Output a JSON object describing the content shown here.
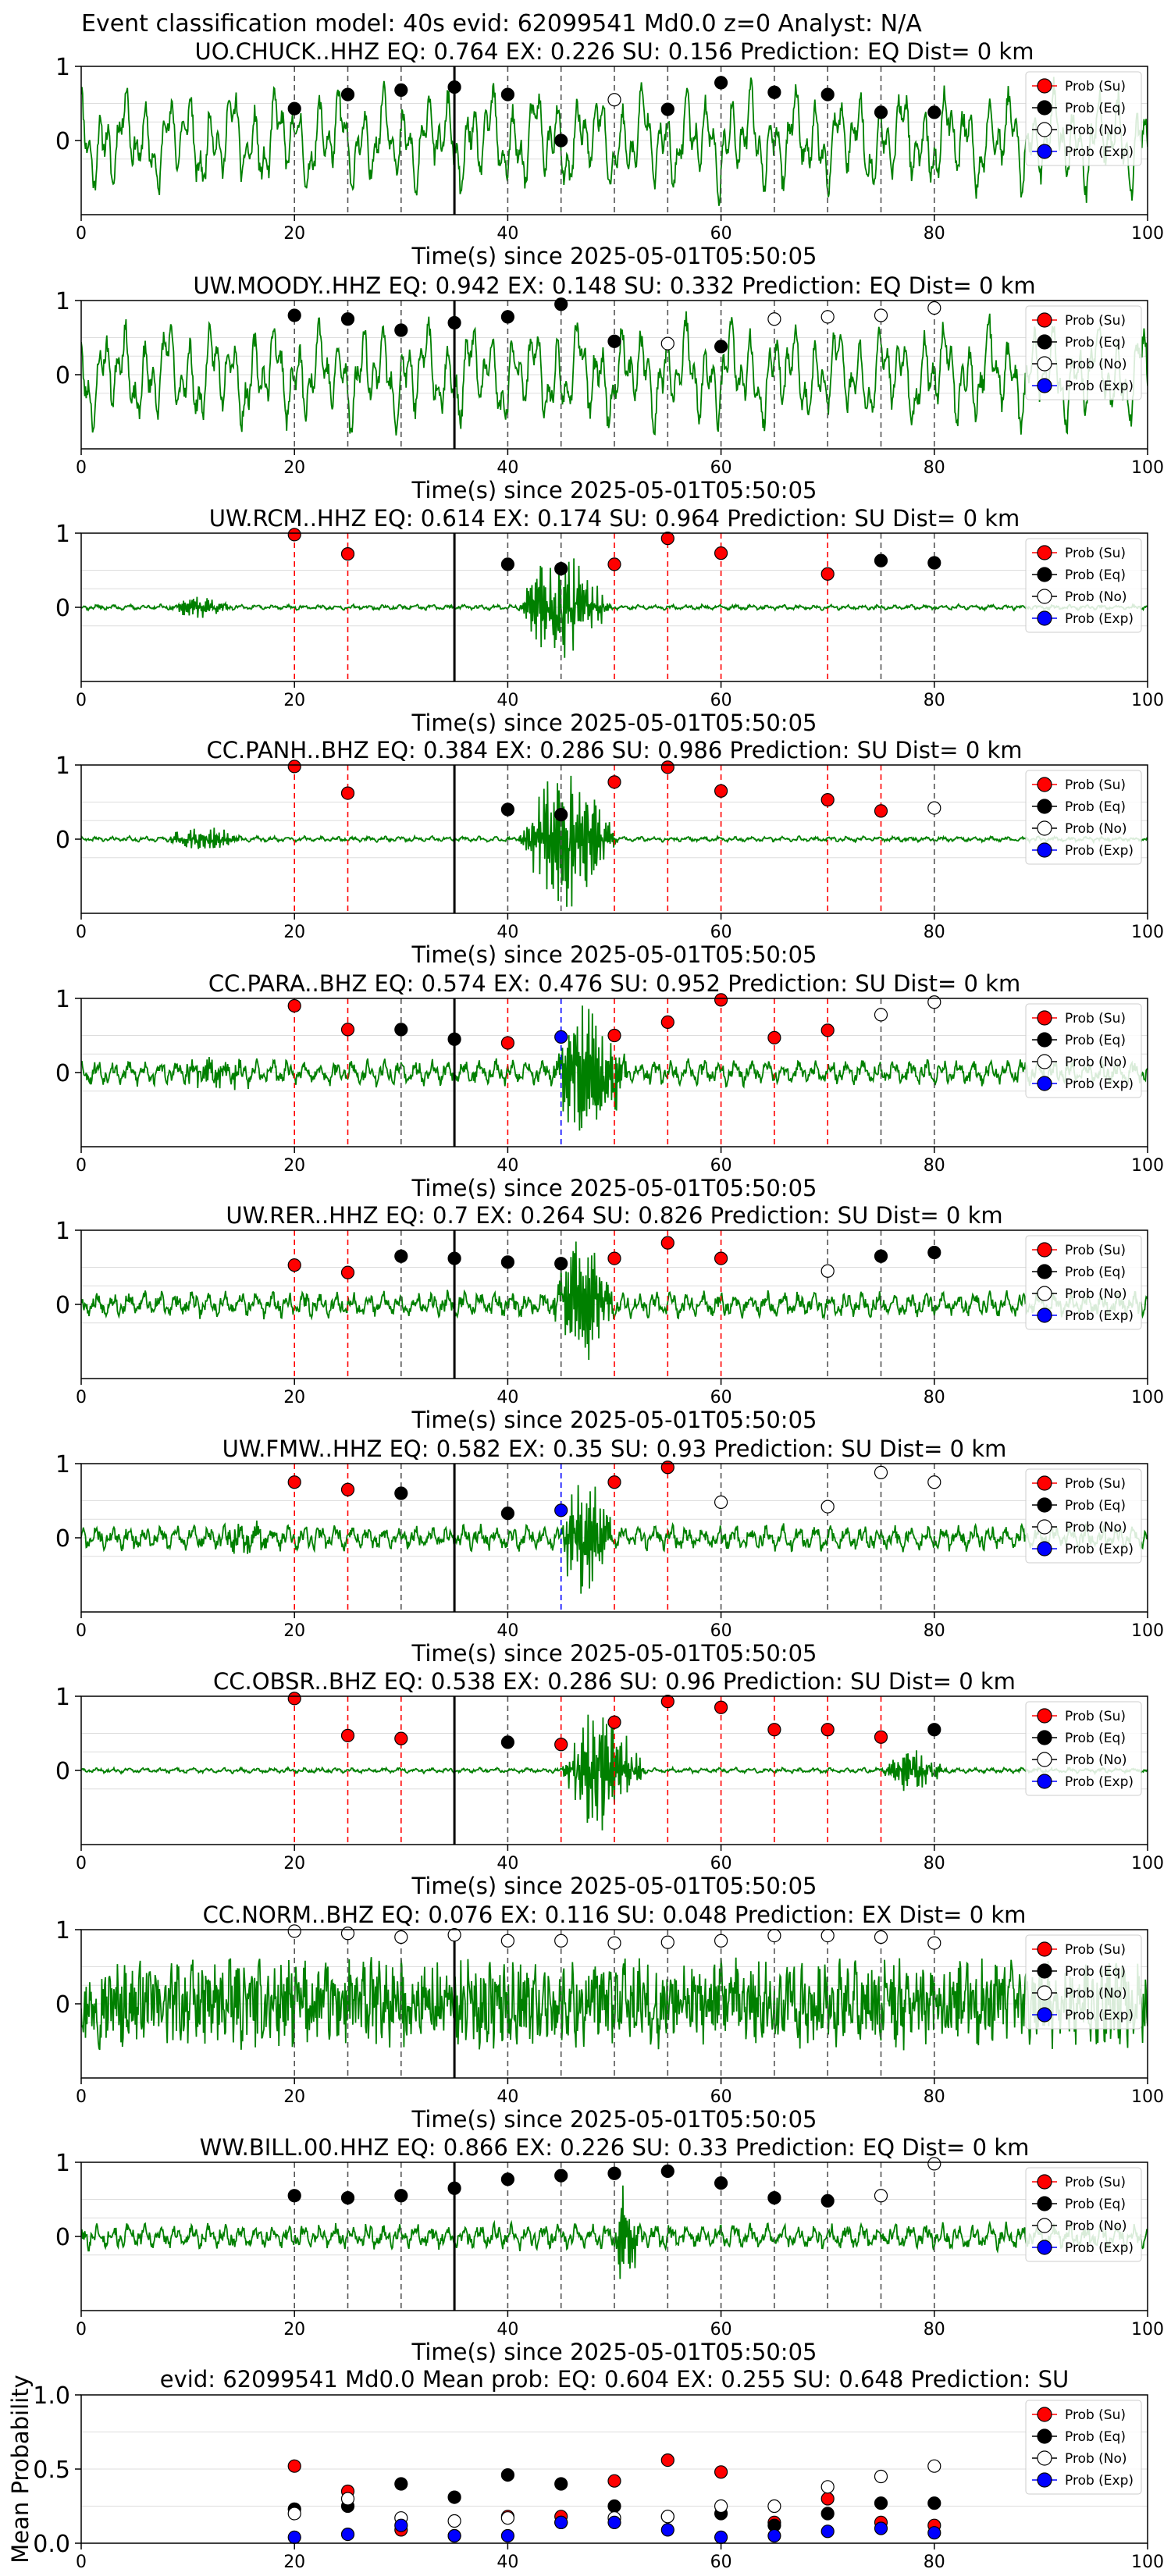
{
  "suptitle": "Event classification model: 40s evid: 62099541 Md0.0 z=0 Analyst: N/A",
  "legend_labels": [
    "Prob (Su)",
    "Prob (Eq)",
    "Prob (No)",
    "Prob (Exp)"
  ],
  "colors": {
    "su": "#ff0000",
    "eq": "#000000",
    "no": "#ffffff",
    "exp": "#0000ff",
    "waveform": "#008000",
    "origin_line": "#000000",
    "grid": "#dddddd"
  },
  "chart_data": [
    {
      "type": "line",
      "title": "UO.CHUCK..HHZ   EQ: 0.764  EX: 0.226  SU: 0.156   Prediction: EQ    Dist= 0 km",
      "xlabel": "Time(s) since 2025-05-01T05:50:05",
      "xlim": [
        0,
        100
      ],
      "ylim": [
        -1,
        1
      ],
      "xticks": [
        0,
        20,
        40,
        60,
        80,
        100
      ],
      "yticks": [
        1,
        0
      ],
      "origin_time": 35,
      "waveform": {
        "style": "strong",
        "seed": 11,
        "events": []
      },
      "windows": [
        {
          "t": 20,
          "class": "eq",
          "p": 0.43
        },
        {
          "t": 25,
          "class": "eq",
          "p": 0.62
        },
        {
          "t": 30,
          "class": "eq",
          "p": 0.68
        },
        {
          "t": 35,
          "class": "eq",
          "p": 0.72
        },
        {
          "t": 40,
          "class": "eq",
          "p": 0.62
        },
        {
          "t": 45,
          "class": "eq",
          "p": 0.0
        },
        {
          "t": 50,
          "class": "no",
          "p": 0.55
        },
        {
          "t": 55,
          "class": "eq",
          "p": 0.42
        },
        {
          "t": 60,
          "class": "eq",
          "p": 0.78
        },
        {
          "t": 65,
          "class": "eq",
          "p": 0.65
        },
        {
          "t": 70,
          "class": "eq",
          "p": 0.62
        },
        {
          "t": 75,
          "class": "eq",
          "p": 0.38
        },
        {
          "t": 80,
          "class": "eq",
          "p": 0.38
        }
      ]
    },
    {
      "type": "line",
      "title": "UW.MOODY..HHZ   EQ: 0.942  EX: 0.148  SU: 0.332   Prediction: EQ    Dist= 0 km",
      "xlabel": "Time(s) since 2025-05-01T05:50:05",
      "xlim": [
        0,
        100
      ],
      "ylim": [
        -1,
        1
      ],
      "xticks": [
        0,
        20,
        40,
        60,
        80,
        100
      ],
      "yticks": [
        1,
        0
      ],
      "origin_time": 35,
      "waveform": {
        "style": "strong",
        "seed": 23,
        "events": []
      },
      "windows": [
        {
          "t": 20,
          "class": "eq",
          "p": 0.8
        },
        {
          "t": 25,
          "class": "eq",
          "p": 0.75
        },
        {
          "t": 30,
          "class": "eq",
          "p": 0.6
        },
        {
          "t": 35,
          "class": "eq",
          "p": 0.7
        },
        {
          "t": 40,
          "class": "eq",
          "p": 0.78
        },
        {
          "t": 45,
          "class": "eq",
          "p": 0.95
        },
        {
          "t": 50,
          "class": "eq",
          "p": 0.45
        },
        {
          "t": 55,
          "class": "no",
          "p": 0.42
        },
        {
          "t": 60,
          "class": "eq",
          "p": 0.38
        },
        {
          "t": 65,
          "class": "no",
          "p": 0.75
        },
        {
          "t": 70,
          "class": "no",
          "p": 0.78
        },
        {
          "t": 75,
          "class": "no",
          "p": 0.8
        },
        {
          "t": 80,
          "class": "no",
          "p": 0.9
        }
      ]
    },
    {
      "type": "line",
      "title": "UW.RCM..HHZ   EQ: 0.614  EX: 0.174  SU: 0.964   Prediction: SU    Dist= 0 km",
      "xlabel": "Time(s) since 2025-05-01T05:50:05",
      "xlim": [
        0,
        100
      ],
      "ylim": [
        -1,
        1
      ],
      "xticks": [
        0,
        20,
        40,
        60,
        80,
        100
      ],
      "yticks": [
        1,
        0
      ],
      "origin_time": 35,
      "waveform": {
        "style": "quiet",
        "seed": 37,
        "events": [
          {
            "t0": 8,
            "t1": 18,
            "amp": 0.14
          },
          {
            "t0": 41,
            "t1": 55,
            "amp": 0.75
          }
        ]
      },
      "windows": [
        {
          "t": 20,
          "class": "su",
          "p": 0.98
        },
        {
          "t": 25,
          "class": "su",
          "p": 0.72
        },
        {
          "t": 40,
          "class": "eq",
          "p": 0.58
        },
        {
          "t": 45,
          "class": "eq",
          "p": 0.52
        },
        {
          "t": 50,
          "class": "su",
          "p": 0.58
        },
        {
          "t": 55,
          "class": "su",
          "p": 0.93
        },
        {
          "t": 60,
          "class": "su",
          "p": 0.73
        },
        {
          "t": 70,
          "class": "su",
          "p": 0.45
        },
        {
          "t": 75,
          "class": "eq",
          "p": 0.63
        },
        {
          "t": 80,
          "class": "eq",
          "p": 0.6
        }
      ]
    },
    {
      "type": "line",
      "title": "CC.PANH..BHZ   EQ: 0.384  EX: 0.286  SU: 0.986   Prediction: SU    Dist= 0 km",
      "xlabel": "Time(s) since 2025-05-01T05:50:05",
      "xlim": [
        0,
        100
      ],
      "ylim": [
        -1,
        1
      ],
      "xticks": [
        0,
        20,
        40,
        60,
        80,
        100
      ],
      "yticks": [
        1,
        0
      ],
      "origin_time": 35,
      "waveform": {
        "style": "quiet",
        "seed": 41,
        "events": [
          {
            "t0": 8,
            "t1": 20,
            "amp": 0.18
          },
          {
            "t0": 41,
            "t1": 56,
            "amp": 0.95
          }
        ]
      },
      "windows": [
        {
          "t": 20,
          "class": "su",
          "p": 0.98
        },
        {
          "t": 25,
          "class": "su",
          "p": 0.62
        },
        {
          "t": 40,
          "class": "eq",
          "p": 0.4
        },
        {
          "t": 45,
          "class": "eq",
          "p": 0.33
        },
        {
          "t": 50,
          "class": "su",
          "p": 0.77
        },
        {
          "t": 55,
          "class": "su",
          "p": 0.97
        },
        {
          "t": 60,
          "class": "su",
          "p": 0.65
        },
        {
          "t": 70,
          "class": "su",
          "p": 0.53
        },
        {
          "t": 75,
          "class": "su",
          "p": 0.38
        },
        {
          "t": 80,
          "class": "no",
          "p": 0.42
        }
      ]
    },
    {
      "type": "line",
      "title": "CC.PARA..BHZ   EQ: 0.574  EX: 0.476  SU: 0.952   Prediction: SU    Dist= 0 km",
      "xlabel": "Time(s) since 2025-05-01T05:50:05",
      "xlim": [
        0,
        100
      ],
      "ylim": [
        -1,
        1
      ],
      "xticks": [
        0,
        20,
        40,
        60,
        80,
        100
      ],
      "yticks": [
        1,
        0
      ],
      "origin_time": 35,
      "waveform": {
        "style": "medium",
        "seed": 53,
        "events": [
          {
            "t0": 9,
            "t1": 22,
            "amp": 0.2
          },
          {
            "t0": 44,
            "t1": 56,
            "amp": 1.0
          }
        ]
      },
      "windows": [
        {
          "t": 20,
          "class": "su",
          "p": 0.9
        },
        {
          "t": 25,
          "class": "su",
          "p": 0.58
        },
        {
          "t": 30,
          "class": "eq",
          "p": 0.58
        },
        {
          "t": 35,
          "class": "eq",
          "p": 0.45
        },
        {
          "t": 40,
          "class": "su",
          "p": 0.4
        },
        {
          "t": 45,
          "class": "exp",
          "p": 0.48
        },
        {
          "t": 50,
          "class": "su",
          "p": 0.5
        },
        {
          "t": 55,
          "class": "su",
          "p": 0.68
        },
        {
          "t": 60,
          "class": "su",
          "p": 0.98
        },
        {
          "t": 65,
          "class": "su",
          "p": 0.47
        },
        {
          "t": 70,
          "class": "su",
          "p": 0.57
        },
        {
          "t": 75,
          "class": "no",
          "p": 0.78
        },
        {
          "t": 80,
          "class": "no",
          "p": 0.95
        }
      ]
    },
    {
      "type": "line",
      "title": "UW.RER..HHZ   EQ: 0.7  EX: 0.264  SU: 0.826   Prediction: SU    Dist= 0 km",
      "xlabel": "Time(s) since 2025-05-01T05:50:05",
      "xlim": [
        0,
        100
      ],
      "ylim": [
        -1,
        1
      ],
      "xticks": [
        0,
        20,
        40,
        60,
        80,
        100
      ],
      "yticks": [
        1,
        0
      ],
      "origin_time": 35,
      "waveform": {
        "style": "medium",
        "seed": 67,
        "events": [
          {
            "t0": 44,
            "t1": 54,
            "amp": 0.95
          }
        ]
      },
      "windows": [
        {
          "t": 20,
          "class": "su",
          "p": 0.53
        },
        {
          "t": 25,
          "class": "su",
          "p": 0.43
        },
        {
          "t": 30,
          "class": "eq",
          "p": 0.65
        },
        {
          "t": 35,
          "class": "eq",
          "p": 0.62
        },
        {
          "t": 40,
          "class": "eq",
          "p": 0.57
        },
        {
          "t": 45,
          "class": "eq",
          "p": 0.55
        },
        {
          "t": 50,
          "class": "su",
          "p": 0.62
        },
        {
          "t": 55,
          "class": "su",
          "p": 0.83
        },
        {
          "t": 60,
          "class": "su",
          "p": 0.62
        },
        {
          "t": 70,
          "class": "no",
          "p": 0.45
        },
        {
          "t": 75,
          "class": "eq",
          "p": 0.65
        },
        {
          "t": 80,
          "class": "eq",
          "p": 0.7
        }
      ]
    },
    {
      "type": "line",
      "title": "UW.FMW..HHZ   EQ: 0.582  EX: 0.35  SU: 0.93   Prediction: SU    Dist= 0 km",
      "xlabel": "Time(s) since 2025-05-01T05:50:05",
      "xlim": [
        0,
        100
      ],
      "ylim": [
        -1,
        1
      ],
      "xticks": [
        0,
        20,
        40,
        60,
        80,
        100
      ],
      "yticks": [
        1,
        0
      ],
      "origin_time": 35,
      "waveform": {
        "style": "medium",
        "seed": 71,
        "events": [
          {
            "t0": 13,
            "t1": 22,
            "amp": 0.18
          },
          {
            "t0": 45,
            "t1": 53,
            "amp": 1.0
          }
        ]
      },
      "windows": [
        {
          "t": 20,
          "class": "su",
          "p": 0.75
        },
        {
          "t": 25,
          "class": "su",
          "p": 0.65
        },
        {
          "t": 30,
          "class": "eq",
          "p": 0.6
        },
        {
          "t": 40,
          "class": "eq",
          "p": 0.33
        },
        {
          "t": 45,
          "class": "exp",
          "p": 0.37
        },
        {
          "t": 50,
          "class": "su",
          "p": 0.75
        },
        {
          "t": 55,
          "class": "su",
          "p": 0.95
        },
        {
          "t": 60,
          "class": "no",
          "p": 0.48
        },
        {
          "t": 70,
          "class": "no",
          "p": 0.42
        },
        {
          "t": 75,
          "class": "no",
          "p": 0.88
        },
        {
          "t": 80,
          "class": "no",
          "p": 0.75
        }
      ]
    },
    {
      "type": "line",
      "title": "CC.OBSR..BHZ   EQ: 0.538  EX: 0.286  SU: 0.96   Prediction: SU    Dist= 0 km",
      "xlabel": "Time(s) since 2025-05-01T05:50:05",
      "xlim": [
        0,
        100
      ],
      "ylim": [
        -1,
        1
      ],
      "xticks": [
        0,
        20,
        40,
        60,
        80,
        100
      ],
      "yticks": [
        1,
        0
      ],
      "origin_time": 35,
      "waveform": {
        "style": "quiet",
        "seed": 83,
        "events": [
          {
            "t0": 45,
            "t1": 58,
            "amp": 0.85
          },
          {
            "t0": 75,
            "t1": 85,
            "amp": 0.3
          }
        ]
      },
      "windows": [
        {
          "t": 20,
          "class": "su",
          "p": 0.97
        },
        {
          "t": 25,
          "class": "su",
          "p": 0.47
        },
        {
          "t": 30,
          "class": "su",
          "p": 0.43
        },
        {
          "t": 40,
          "class": "eq",
          "p": 0.38
        },
        {
          "t": 45,
          "class": "su",
          "p": 0.35
        },
        {
          "t": 50,
          "class": "su",
          "p": 0.65
        },
        {
          "t": 55,
          "class": "su",
          "p": 0.93
        },
        {
          "t": 60,
          "class": "su",
          "p": 0.85
        },
        {
          "t": 65,
          "class": "su",
          "p": 0.55
        },
        {
          "t": 70,
          "class": "su",
          "p": 0.55
        },
        {
          "t": 75,
          "class": "su",
          "p": 0.45
        },
        {
          "t": 80,
          "class": "eq",
          "p": 0.55
        }
      ]
    },
    {
      "type": "line",
      "title": "CC.NORM..BHZ   EQ: 0.076  EX: 0.116  SU: 0.048   Prediction: EX    Dist= 0 km",
      "xlabel": "Time(s) since 2025-05-01T05:50:05",
      "xlim": [
        0,
        100
      ],
      "ylim": [
        -1,
        1
      ],
      "xticks": [
        0,
        20,
        40,
        60,
        80,
        100
      ],
      "yticks": [
        1,
        0
      ],
      "origin_time": 35,
      "waveform": {
        "style": "noise",
        "seed": 97,
        "events": []
      },
      "windows": [
        {
          "t": 20,
          "class": "no",
          "p": 0.98
        },
        {
          "t": 25,
          "class": "no",
          "p": 0.95
        },
        {
          "t": 30,
          "class": "no",
          "p": 0.9
        },
        {
          "t": 35,
          "class": "no",
          "p": 0.93
        },
        {
          "t": 40,
          "class": "no",
          "p": 0.85
        },
        {
          "t": 45,
          "class": "no",
          "p": 0.85
        },
        {
          "t": 50,
          "class": "no",
          "p": 0.82
        },
        {
          "t": 55,
          "class": "no",
          "p": 0.83
        },
        {
          "t": 60,
          "class": "no",
          "p": 0.85
        },
        {
          "t": 65,
          "class": "no",
          "p": 0.92
        },
        {
          "t": 70,
          "class": "no",
          "p": 0.92
        },
        {
          "t": 75,
          "class": "no",
          "p": 0.9
        },
        {
          "t": 80,
          "class": "no",
          "p": 0.82
        }
      ]
    },
    {
      "type": "line",
      "title": "WW.BILL.00.HHZ   EQ: 0.866  EX: 0.226  SU: 0.33   Prediction: EQ    Dist= 0 km",
      "xlabel": "Time(s) since 2025-05-01T05:50:05",
      "xlim": [
        0,
        100
      ],
      "ylim": [
        -1,
        1
      ],
      "xticks": [
        0,
        20,
        40,
        60,
        80,
        100
      ],
      "yticks": [
        1,
        0
      ],
      "origin_time": 35,
      "waveform": {
        "style": "medium",
        "seed": 101,
        "events": [
          {
            "t0": 50,
            "t1": 54,
            "amp": 0.95
          }
        ]
      },
      "windows": [
        {
          "t": 20,
          "class": "eq",
          "p": 0.55
        },
        {
          "t": 25,
          "class": "eq",
          "p": 0.52
        },
        {
          "t": 30,
          "class": "eq",
          "p": 0.55
        },
        {
          "t": 35,
          "class": "eq",
          "p": 0.65
        },
        {
          "t": 40,
          "class": "eq",
          "p": 0.77
        },
        {
          "t": 45,
          "class": "eq",
          "p": 0.82
        },
        {
          "t": 50,
          "class": "eq",
          "p": 0.85
        },
        {
          "t": 55,
          "class": "eq",
          "p": 0.88
        },
        {
          "t": 60,
          "class": "eq",
          "p": 0.72
        },
        {
          "t": 65,
          "class": "eq",
          "p": 0.52
        },
        {
          "t": 70,
          "class": "eq",
          "p": 0.48
        },
        {
          "t": 75,
          "class": "no",
          "p": 0.55
        },
        {
          "t": 80,
          "class": "no",
          "p": 0.98
        }
      ]
    },
    {
      "type": "scatter",
      "title": "evid: 62099541  Md0.0   Mean prob:   EQ: 0.604  EX: 0.255  SU: 0.648   Prediction: SU",
      "ylabel": "Mean Probability",
      "xlim": [
        0,
        100
      ],
      "ylim": [
        0,
        1
      ],
      "xticks": [
        0,
        20,
        40,
        60,
        80,
        100
      ],
      "yticks": [
        0.0,
        0.5,
        1.0
      ],
      "tick_labels_y": [
        "0.0",
        "0.5",
        "1.0"
      ],
      "x": [
        20,
        25,
        30,
        35,
        40,
        45,
        50,
        55,
        60,
        65,
        70,
        75,
        80
      ],
      "series": [
        {
          "key": "su",
          "values": [
            0.52,
            0.35,
            0.09,
            0.05,
            0.18,
            0.18,
            0.42,
            0.56,
            0.48,
            0.14,
            0.3,
            0.14,
            0.12
          ]
        },
        {
          "key": "eq",
          "values": [
            0.23,
            0.25,
            0.4,
            0.31,
            0.46,
            0.4,
            0.25,
            0.18,
            0.2,
            0.12,
            0.2,
            0.27,
            0.27
          ]
        },
        {
          "key": "no",
          "values": [
            0.2,
            0.3,
            0.17,
            0.15,
            0.17,
            0.14,
            0.17,
            0.18,
            0.25,
            0.25,
            0.38,
            0.45,
            0.52
          ]
        },
        {
          "key": "exp",
          "values": [
            0.04,
            0.06,
            0.12,
            0.05,
            0.05,
            0.14,
            0.14,
            0.09,
            0.04,
            0.05,
            0.08,
            0.1,
            0.07
          ]
        }
      ]
    }
  ]
}
